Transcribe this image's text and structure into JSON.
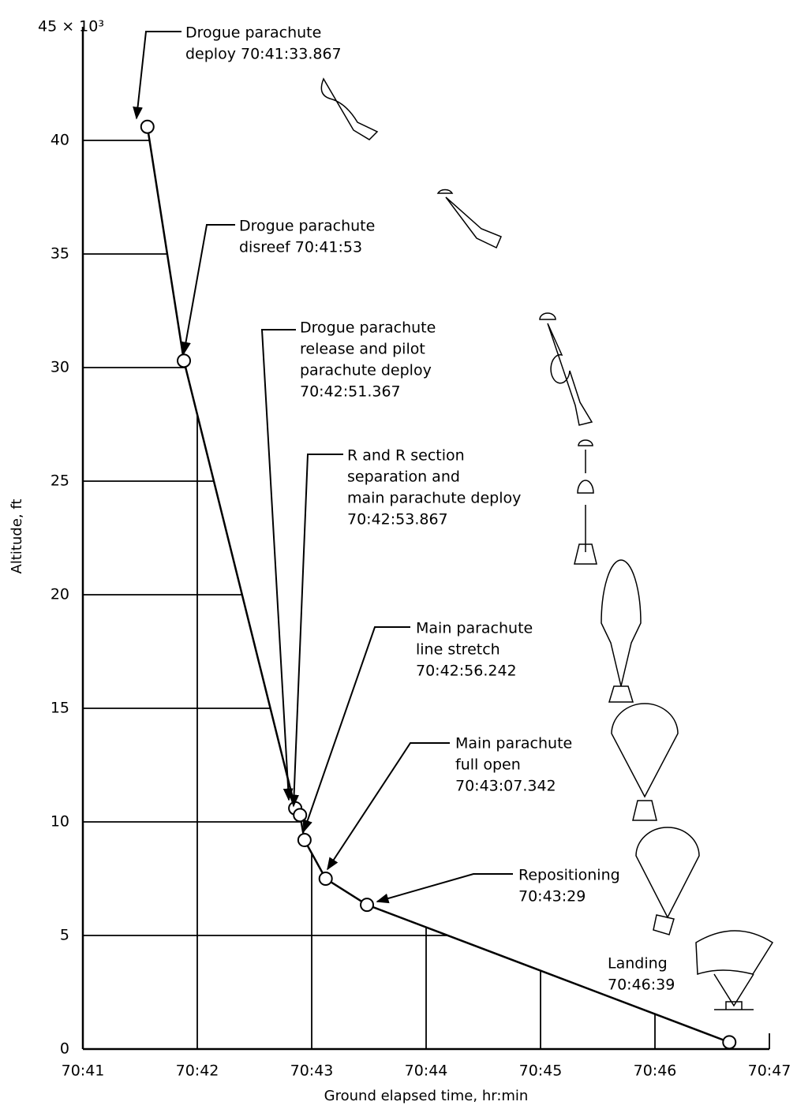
{
  "chart_data": {
    "type": "line",
    "x_label": "Ground elapsed time, hr:min",
    "y_label": "Altitude, ft",
    "x": [
      4241.564,
      4241.883,
      4242.856,
      4242.898,
      4242.937,
      4243.122,
      4243.483,
      4246.65
    ],
    "series": [
      {
        "color": "#000000",
        "values": [
          40.6,
          30.3,
          10.6,
          10.3,
          9.2,
          7.5,
          6.35,
          0.3
        ]
      }
    ],
    "xlim": [
      4241,
      4247
    ],
    "xticks": [
      {
        "value": 4241,
        "label": "70:41"
      },
      {
        "value": 4242,
        "label": "70:42"
      },
      {
        "value": 4243,
        "label": "70:43"
      },
      {
        "value": 4244,
        "label": "70:44"
      },
      {
        "value": 4245,
        "label": "70:45"
      },
      {
        "value": 4246,
        "label": "70:46"
      },
      {
        "value": 4247,
        "label": "70:47"
      }
    ],
    "ylim": [
      0,
      45
    ],
    "yticks": [
      0,
      5,
      10,
      15,
      20,
      25,
      30,
      35,
      40,
      {
        "value": 45,
        "label": "45 × 10³"
      }
    ],
    "grid": true,
    "annotations": [
      [
        "Drogue parachute",
        "deploy 70:41:33.867"
      ],
      [
        "Drogue parachute",
        "disreef 70:41:53"
      ],
      [
        "Drogue parachute",
        "release and pilot",
        "parachute deploy",
        "70:42:51.367"
      ],
      [
        "R and R section",
        "separation and",
        "main parachute deploy",
        "70:42:53.867"
      ],
      [
        "Main parachute",
        "line stretch",
        "70:42:56.242"
      ],
      [
        "Main parachute",
        "full open",
        "70:43:07.342"
      ],
      [
        "Repositioning",
        "70:43:29"
      ],
      [
        "Landing",
        "70:46:39"
      ]
    ]
  }
}
